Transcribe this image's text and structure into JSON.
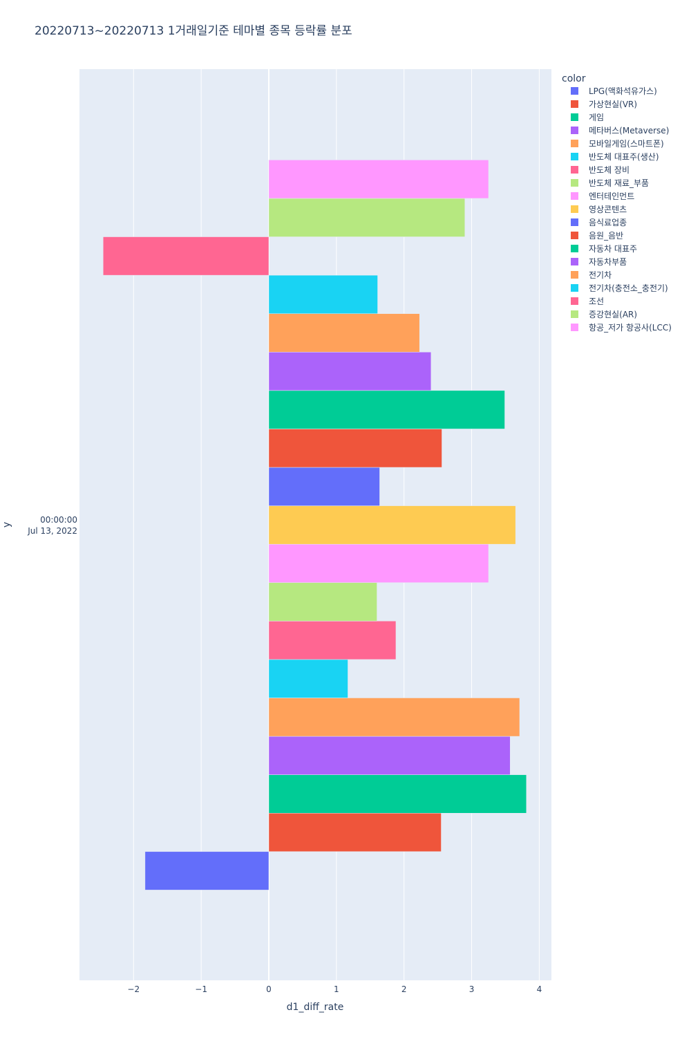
{
  "chart_data": {
    "type": "bar",
    "orientation": "horizontal",
    "barmode": "group",
    "title": "20220713~20220713 1거래일기준 테마별 종목 등락률 분포",
    "xlabel": "d1_diff_rate",
    "ylabel": "y",
    "xlim": [
      -2.8,
      4.18
    ],
    "xticks": [
      -2,
      -1,
      0,
      1,
      2,
      3,
      4
    ],
    "xtick_labels": [
      "−2",
      "−1",
      "0",
      "1",
      "2",
      "3",
      "4"
    ],
    "y_category_line1": "00:00:00",
    "y_category_line2": "Jul 13, 2022",
    "legend_title": "color",
    "legend_position": "top-right",
    "grid": true,
    "background": "#e5ecf6",
    "series": [
      {
        "name": "LPG(액화석유가스)",
        "color": "#636efa",
        "value": -1.83
      },
      {
        "name": "가상현실(VR)",
        "color": "#EF553B",
        "value": 2.55
      },
      {
        "name": "게임",
        "color": "#00cc96",
        "value": 3.81
      },
      {
        "name": "메타버스(Metaverse)",
        "color": "#ab63fa",
        "value": 3.57
      },
      {
        "name": "모바일게임(스마트폰)",
        "color": "#FFA15A",
        "value": 3.71
      },
      {
        "name": "반도체 대표주(생산)",
        "color": "#19d3f3",
        "value": 1.17
      },
      {
        "name": "반도체 장비",
        "color": "#FF6692",
        "value": 1.88
      },
      {
        "name": "반도체 재료_부품",
        "color": "#B6E880",
        "value": 1.6
      },
      {
        "name": "엔터테인먼트",
        "color": "#FF97FF",
        "value": 3.25
      },
      {
        "name": "영상콘텐츠",
        "color": "#FECB52",
        "value": 3.65
      },
      {
        "name": "음식료업종",
        "color": "#636efa",
        "value": 1.64
      },
      {
        "name": "음원_음반",
        "color": "#EF553B",
        "value": 2.56
      },
      {
        "name": "자동차 대표주",
        "color": "#00cc96",
        "value": 3.49
      },
      {
        "name": "자동차부품",
        "color": "#ab63fa",
        "value": 2.4
      },
      {
        "name": "전기차",
        "color": "#FFA15A",
        "value": 2.23
      },
      {
        "name": "전기차(충전소_충전기)",
        "color": "#19d3f3",
        "value": 1.61
      },
      {
        "name": "조선",
        "color": "#FF6692",
        "value": -2.45
      },
      {
        "name": "증강현실(AR)",
        "color": "#B6E880",
        "value": 2.9
      },
      {
        "name": "항공_저가 항공사(LCC)",
        "color": "#FF97FF",
        "value": 3.25
      }
    ]
  }
}
